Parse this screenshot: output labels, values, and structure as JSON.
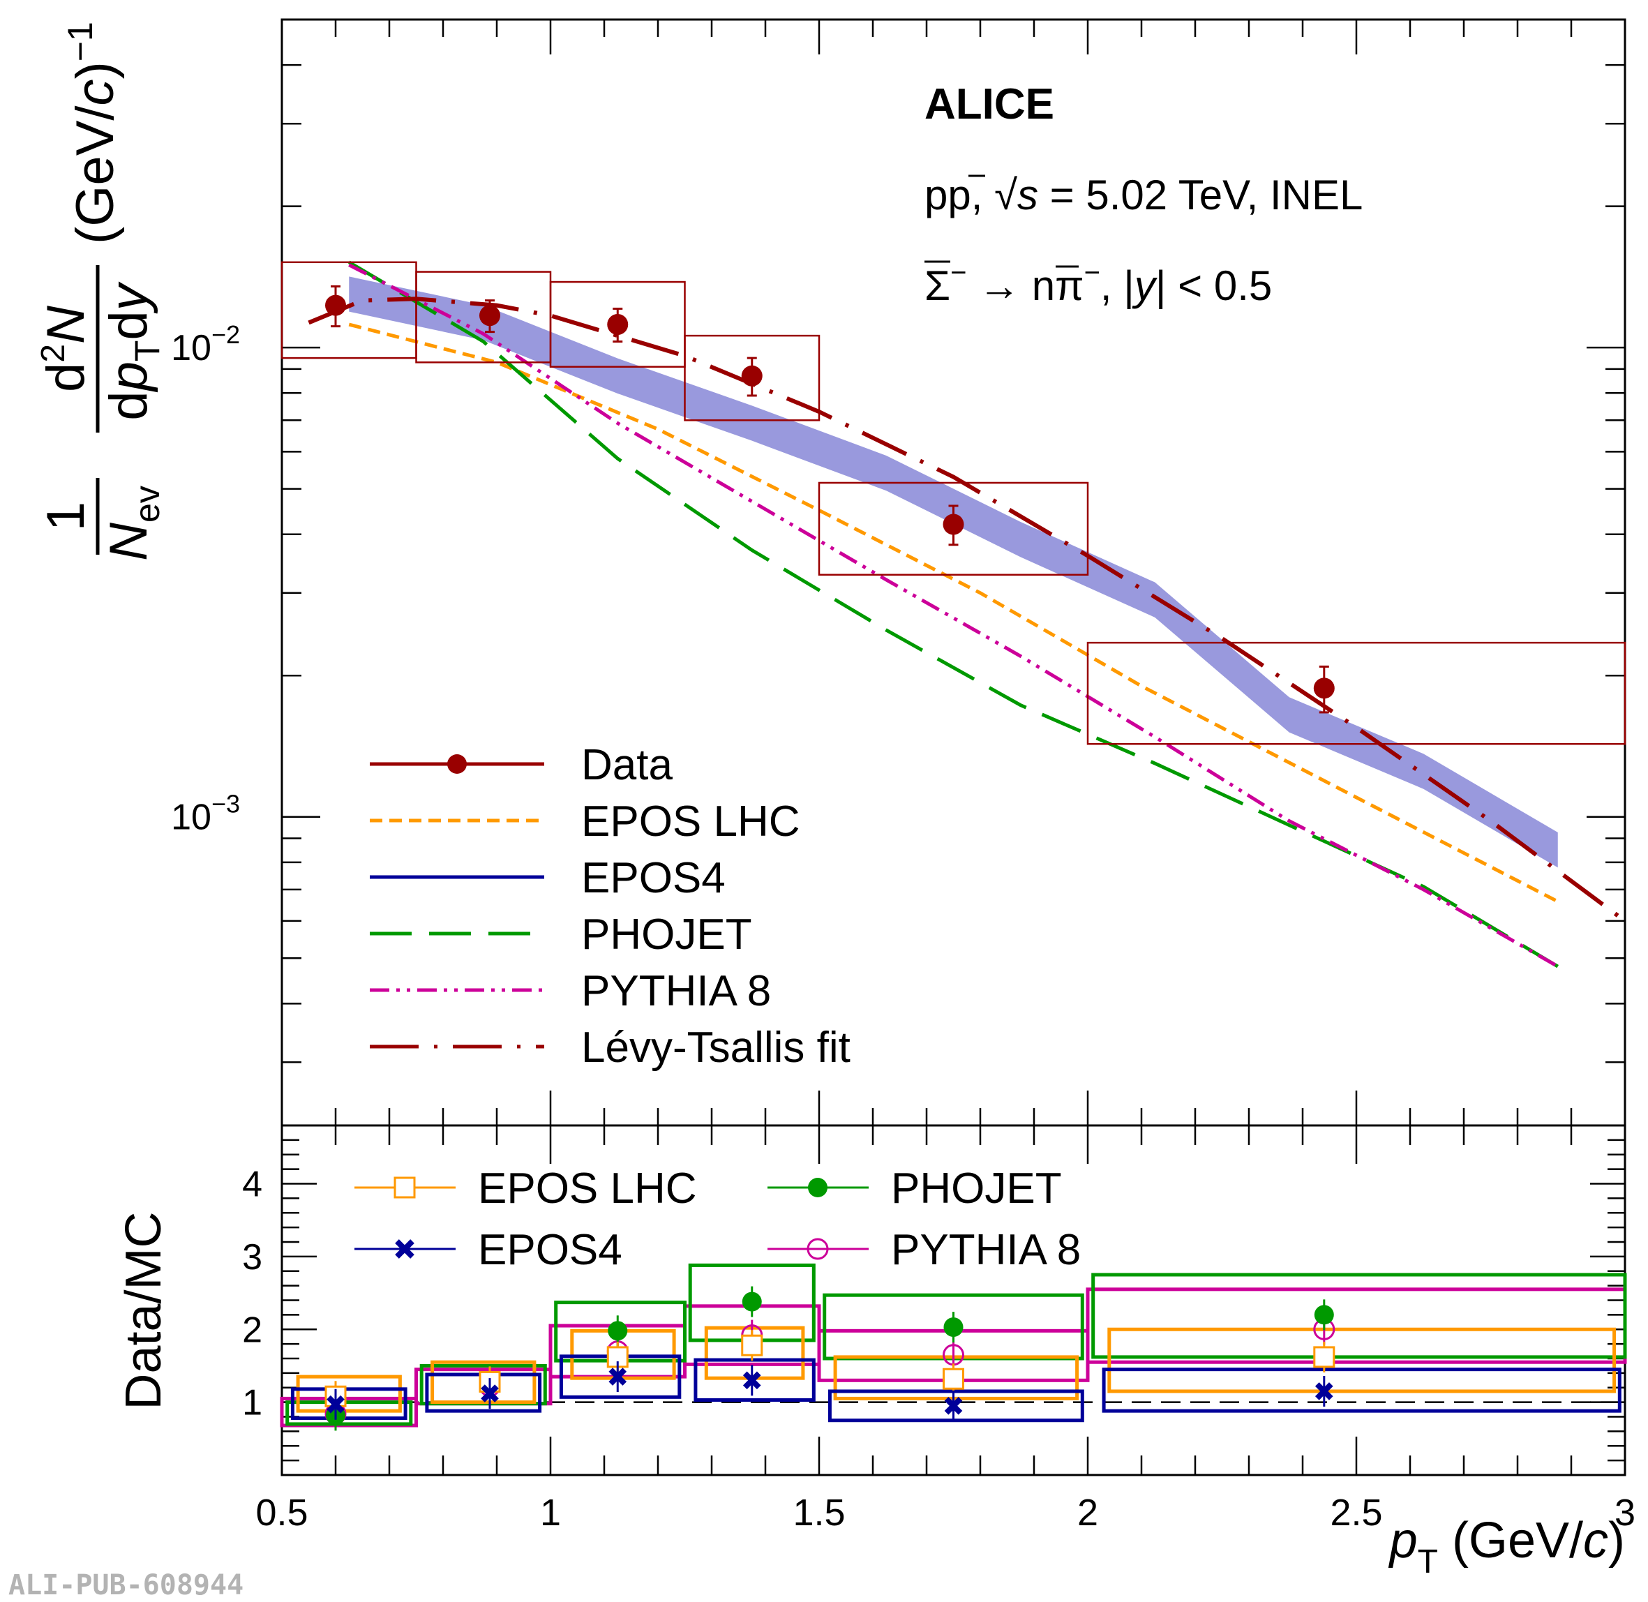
{
  "chart_data": [
    {
      "type": "scatter",
      "panel": "top",
      "log_y": true,
      "xlim": [
        0.5,
        3.0
      ],
      "ylim": [
        0.00022,
        0.05
      ],
      "ylabel": "1/N_ev d²N/dp_T dy (GeV/c)^-1",
      "ytick_labels": [
        "10^-2",
        "10^-3"
      ],
      "annotations": [
        "ALICE",
        "pp, √s = 5.02 TeV, INEL",
        "Σ̄⁻ → n̄π⁻, |y| < 0.5"
      ],
      "legend_position": "bottom-left",
      "data": {
        "name": "Data",
        "color": "#990000",
        "x": [
          0.6,
          0.887,
          1.125,
          1.375,
          1.75,
          2.44
        ],
        "y": [
          0.0123,
          0.0117,
          0.0112,
          0.0087,
          0.0042,
          0.00188
        ],
        "stat_err": [
          0.0012,
          0.0009,
          0.0009,
          0.0008,
          0.0004,
          0.00021
        ],
        "sys_box_xlo": [
          0.5,
          0.75,
          1.0,
          1.25,
          1.5,
          2.0
        ],
        "sys_box_xhi": [
          0.75,
          1.0,
          1.25,
          1.5,
          2.0,
          3.0
        ],
        "sys_box_ylo": [
          0.0095,
          0.0093,
          0.0091,
          0.007,
          0.00328,
          0.00143
        ],
        "sys_box_yhi": [
          0.0152,
          0.0145,
          0.0138,
          0.0106,
          0.00515,
          0.00235
        ]
      },
      "models": [
        {
          "name": "EPOS LHC",
          "color": "#ff9900",
          "style": "dotted",
          "x": [
            0.625,
            0.9,
            1.2,
            1.5,
            1.8,
            2.1,
            2.5,
            2.875
          ],
          "y": [
            0.0112,
            0.0093,
            0.0067,
            0.0045,
            0.003,
            0.0019,
            0.0011,
            0.00066
          ]
        },
        {
          "name": "EPOS4",
          "color": "#000099",
          "style": "band",
          "x": [
            0.625,
            0.875,
            1.125,
            1.375,
            1.625,
            1.875,
            2.125,
            2.375,
            2.625,
            2.875
          ],
          "y": [
            0.013,
            0.0113,
            0.0087,
            0.0069,
            0.0054,
            0.0039,
            0.0029,
            0.00165,
            0.00125,
            0.00085
          ],
          "band_color": "#9999dd"
        },
        {
          "name": "PHOJET",
          "color": "#009900",
          "style": "long-dash",
          "x": [
            0.625,
            0.875,
            1.125,
            1.375,
            1.625,
            1.875,
            2.125,
            2.375,
            2.625,
            2.875
          ],
          "y": [
            0.0152,
            0.0103,
            0.0058,
            0.0037,
            0.0025,
            0.00173,
            0.0013,
            0.00096,
            0.00071,
            0.00048
          ]
        },
        {
          "name": "PYTHIA 8",
          "color": "#cc0099",
          "style": "dash-dot-dot",
          "x": [
            0.625,
            0.875,
            1.125,
            1.375,
            1.625,
            1.875,
            2.125,
            2.375,
            2.625,
            2.875
          ],
          "y": [
            0.015,
            0.0107,
            0.0069,
            0.0047,
            0.0032,
            0.0022,
            0.00148,
            0.00098,
            0.0007,
            0.00048
          ]
        },
        {
          "name": "Lévy-Tsallis fit",
          "color": "#990000",
          "style": "dash-dot",
          "x": [
            0.55,
            0.65,
            0.75,
            0.9,
            1.0,
            1.25,
            1.5,
            1.75,
            2.0,
            2.25,
            2.5,
            2.75,
            3.0
          ],
          "y": [
            0.0113,
            0.0126,
            0.0127,
            0.0123,
            0.0117,
            0.0096,
            0.0073,
            0.0053,
            0.0036,
            0.0024,
            0.00155,
            0.00098,
            0.0006
          ]
        }
      ],
      "legend": [
        "Data",
        "EPOS LHC",
        "EPOS4",
        "PHOJET",
        "PYTHIA 8",
        "Lévy-Tsallis fit"
      ]
    },
    {
      "type": "scatter",
      "panel": "bottom",
      "xlim": [
        0.5,
        3.0
      ],
      "ylim": [
        0.0,
        4.8
      ],
      "ylabel": "Data/MC",
      "xlabel": "p_T (GeV/c)",
      "ytick_labels": [
        "1",
        "2",
        "3",
        "4"
      ],
      "xtick_labels": [
        "0.5",
        "1",
        "1.5",
        "2",
        "2.5",
        "3"
      ],
      "reference_line": 1.0,
      "legend_position": "top-left",
      "series": [
        {
          "name": "EPOS LHC",
          "color": "#ff9900",
          "marker": "open-square",
          "x": [
            0.6,
            0.887,
            1.125,
            1.375,
            1.75,
            2.44
          ],
          "y": [
            1.08,
            1.28,
            1.62,
            1.78,
            1.32,
            1.62
          ],
          "box_xlo": [
            0.53,
            0.78,
            1.04,
            1.29,
            1.53,
            2.04
          ],
          "box_xhi": [
            0.72,
            0.97,
            1.23,
            1.47,
            1.98,
            2.98
          ],
          "box_ylo": [
            0.88,
            1.0,
            1.33,
            1.33,
            1.05,
            1.15
          ],
          "box_yhi": [
            1.35,
            1.55,
            1.98,
            2.02,
            1.62,
            2.0
          ]
        },
        {
          "name": "EPOS4",
          "color": "#000099",
          "marker": "x",
          "x": [
            0.6,
            0.887,
            1.125,
            1.375,
            1.75,
            2.44
          ],
          "y": [
            0.97,
            1.12,
            1.35,
            1.3,
            0.95,
            1.15
          ],
          "box_xlo": [
            0.52,
            0.77,
            1.02,
            1.27,
            1.52,
            2.03
          ],
          "box_xhi": [
            0.73,
            0.98,
            1.24,
            1.49,
            1.99,
            2.99
          ],
          "box_ylo": [
            0.78,
            0.88,
            1.07,
            1.03,
            0.75,
            0.88
          ],
          "box_yhi": [
            1.18,
            1.38,
            1.63,
            1.58,
            1.15,
            1.45
          ]
        },
        {
          "name": "PHOJET",
          "color": "#009900",
          "marker": "filled-circle",
          "x": [
            0.6,
            0.887,
            1.125,
            1.375,
            1.75,
            2.44
          ],
          "y": [
            0.82,
            1.27,
            1.98,
            2.38,
            2.03,
            2.2
          ],
          "box_xlo": [
            0.51,
            0.76,
            1.01,
            1.26,
            1.51,
            2.01
          ],
          "box_xhi": [
            0.74,
            0.99,
            1.25,
            1.49,
            1.99,
            3.0
          ],
          "box_ylo": [
            0.7,
            0.98,
            1.57,
            1.85,
            1.6,
            1.62
          ],
          "box_yhi": [
            1.0,
            1.5,
            2.37,
            2.88,
            2.47,
            2.75
          ]
        },
        {
          "name": "PYTHIA 8",
          "color": "#cc0099",
          "marker": "open-circle",
          "x": [
            0.6,
            0.887,
            1.125,
            1.375,
            1.75,
            2.44
          ],
          "y": [
            0.84,
            1.22,
            1.7,
            1.92,
            1.65,
            2.0
          ],
          "box_xlo": [
            0.5,
            0.75,
            1.0,
            1.25,
            1.5,
            2.0
          ],
          "box_xhi": [
            0.75,
            1.0,
            1.25,
            1.5,
            2.0,
            3.0
          ],
          "box_ylo": [
            0.68,
            0.98,
            1.35,
            1.52,
            1.3,
            1.55
          ],
          "box_yhi": [
            1.05,
            1.45,
            2.05,
            2.32,
            1.98,
            2.55
          ]
        }
      ],
      "legend": [
        "EPOS LHC",
        "EPOS4",
        "PHOJET",
        "PYTHIA 8"
      ]
    }
  ],
  "watermark": "ALI-PUB-608944"
}
